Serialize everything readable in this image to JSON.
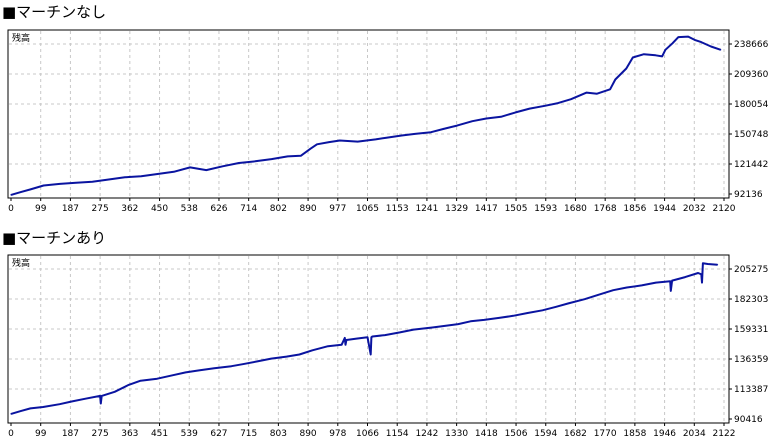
{
  "chart_data": [
    {
      "type": "line",
      "title": "■マーチンなし",
      "inner_label": "残高",
      "series_color": "#0a14a0",
      "grid": true,
      "xlim": [
        0,
        2190
      ],
      "ylim": [
        92136,
        245000
      ],
      "xticks": [
        "0",
        "99",
        "187",
        "275",
        "362",
        "450",
        "538",
        "626",
        "714",
        "802",
        "890",
        "977",
        "1065",
        "1153",
        "1241",
        "1329",
        "1417",
        "1505",
        "1593",
        "1680",
        "1768",
        "1856",
        "1944",
        "2032",
        "2120"
      ],
      "yticks": [
        "238666",
        "209360",
        "180054",
        "150748",
        "121442",
        "92136"
      ],
      "x": [
        0,
        30,
        60,
        100,
        150,
        200,
        250,
        300,
        350,
        400,
        450,
        500,
        550,
        600,
        650,
        700,
        750,
        800,
        850,
        890,
        920,
        940,
        977,
        1010,
        1065,
        1120,
        1153,
        1200,
        1241,
        1290,
        1329,
        1370,
        1417,
        1460,
        1505,
        1550,
        1593,
        1640,
        1680,
        1720,
        1768,
        1800,
        1840,
        1856,
        1890,
        1910,
        1944,
        1980,
        2000,
        2010,
        2032,
        2050,
        2080,
        2100,
        2120,
        2150,
        2180
      ],
      "y": [
        95000,
        97500,
        100000,
        103500,
        105000,
        106000,
        107000,
        109000,
        111000,
        112000,
        114000,
        116000,
        120000,
        117500,
        121000,
        124000,
        125500,
        127500,
        130000,
        130500,
        137000,
        141000,
        143000,
        144500,
        143500,
        145500,
        147000,
        149000,
        150500,
        152000,
        155000,
        158000,
        162000,
        164500,
        166000,
        170000,
        173500,
        176000,
        178500,
        182000,
        188000,
        187000,
        191000,
        200000,
        210000,
        220000,
        223000,
        222000,
        221000,
        227000,
        233000,
        238500,
        239000,
        236000,
        234000,
        230000,
        227000
      ]
    },
    {
      "type": "line",
      "title": "■マーチンあり",
      "inner_label": "残高",
      "series_color": "#0a14a0",
      "grid": true,
      "xlim": [
        0,
        2200
      ],
      "ylim": [
        90416,
        212000
      ],
      "xticks": [
        "0",
        "99",
        "187",
        "275",
        "363",
        "451",
        "539",
        "627",
        "715",
        "803",
        "890",
        "978",
        "1066",
        "1154",
        "1242",
        "1330",
        "1418",
        "1506",
        "1594",
        "1682",
        "1770",
        "1858",
        "1946",
        "2034",
        "2122"
      ],
      "yticks": [
        "205275",
        "182303",
        "159331",
        "136359",
        "113387",
        "90416"
      ],
      "x": [
        0,
        30,
        60,
        99,
        150,
        187,
        230,
        275,
        277,
        280,
        320,
        363,
        400,
        451,
        500,
        539,
        580,
        627,
        680,
        715,
        760,
        803,
        850,
        890,
        930,
        978,
        1020,
        1030,
        1032,
        1035,
        1066,
        1100,
        1110,
        1112,
        1115,
        1154,
        1200,
        1242,
        1300,
        1330,
        1380,
        1418,
        1460,
        1506,
        1550,
        1594,
        1640,
        1682,
        1720,
        1770,
        1810,
        1858,
        1900,
        1946,
        1990,
        2034,
        2036,
        2040,
        2080,
        2120,
        2130,
        2132,
        2135,
        2150,
        2180
      ],
      "y": [
        97000,
        99000,
        101000,
        102000,
        104000,
        106000,
        108000,
        110000,
        104500,
        110000,
        113000,
        118000,
        121000,
        122500,
        125000,
        127000,
        128500,
        130000,
        131500,
        133000,
        135000,
        137000,
        138500,
        140000,
        143000,
        146000,
        147000,
        152000,
        147000,
        150500,
        151500,
        152500,
        140000,
        152500,
        153000,
        154000,
        156000,
        158000,
        159500,
        160500,
        162000,
        164000,
        165000,
        166500,
        168000,
        170000,
        172000,
        174500,
        177000,
        180000,
        183000,
        186500,
        188500,
        190000,
        192000,
        193000,
        186000,
        193500,
        196000,
        199000,
        198000,
        192000,
        206000,
        205500,
        205000
      ]
    }
  ]
}
